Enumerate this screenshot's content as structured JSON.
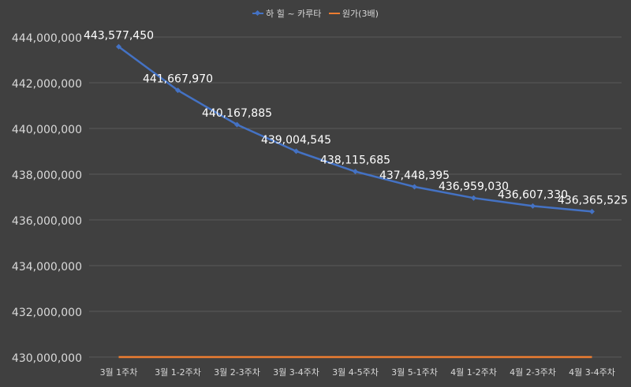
{
  "chart_data": {
    "type": "line",
    "title": "",
    "xlabel": "",
    "ylabel": "",
    "categories": [
      "3월 1주차",
      "3월 1-2주차",
      "3월 2-3주차",
      "3월 3-4주차",
      "3월 4-5주차",
      "3월 5-1주차",
      "4월 1-2주차",
      "4월 2-3주차",
      "4월 3-4주차"
    ],
    "ylim": [
      430000000,
      444000000
    ],
    "yticks": [
      430000000,
      432000000,
      434000000,
      436000000,
      438000000,
      440000000,
      442000000,
      444000000
    ],
    "ytick_labels": [
      "430,000,000",
      "432,000,000",
      "434,000,000",
      "436,000,000",
      "438,000,000",
      "440,000,000",
      "442,000,000",
      "444,000,000"
    ],
    "grid": true,
    "legend_position": "top-center",
    "series": [
      {
        "name": "하 힐 ~ 카루타",
        "color": "#4472c4",
        "marker": "diamond",
        "values": [
          443577450,
          441667970,
          440167885,
          439004545,
          438115685,
          437448395,
          436959030,
          436607330,
          436365525
        ],
        "labels": [
          "443,577,450",
          "441,667,970",
          "440,167,885",
          "439,004,545",
          "438,115,685",
          "437,448,395",
          "436,959,030",
          "436,607,330",
          "436,365,525"
        ]
      },
      {
        "name": "원가(3배)",
        "color": "#ed7d31",
        "marker": "none",
        "values": [
          430000000,
          430000000,
          430000000,
          430000000,
          430000000,
          430000000,
          430000000,
          430000000,
          430000000
        ],
        "labels": []
      }
    ]
  },
  "colors": {
    "background": "#404040",
    "grid": "#5a5a5a",
    "text": "#d9d9d9",
    "label": "#ffffff"
  }
}
